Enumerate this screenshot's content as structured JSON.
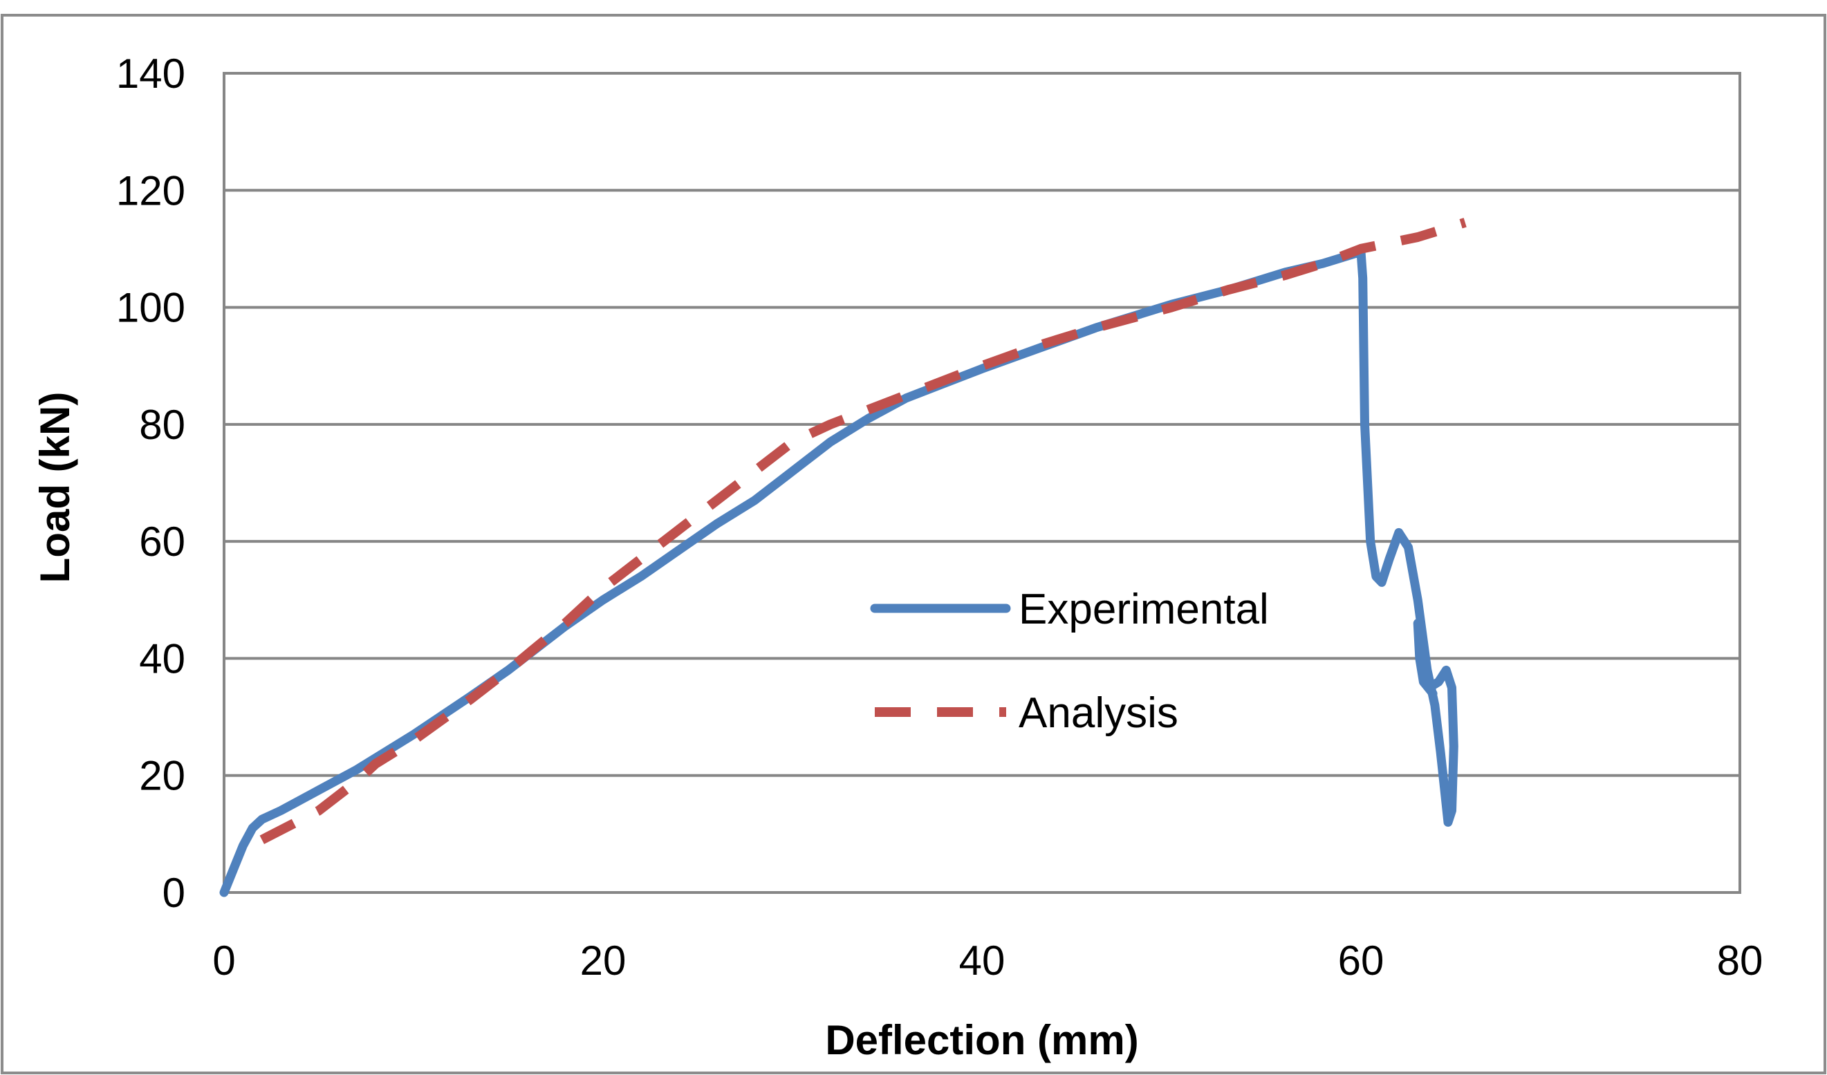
{
  "chart_data": {
    "type": "line",
    "title": "",
    "xlabel": "Deflection (mm)",
    "ylabel": "Load (kN)",
    "xlim": [
      0,
      80
    ],
    "ylim": [
      0,
      140
    ],
    "xticks": [
      0,
      20,
      40,
      60,
      80
    ],
    "yticks": [
      0,
      20,
      40,
      60,
      80,
      100,
      120,
      140
    ],
    "grid": "horizontal",
    "legend_position": "center-right",
    "series": [
      {
        "name": "Experimental",
        "color": "#4F81BD",
        "style": "solid",
        "points": [
          [
            0,
            0
          ],
          [
            0.5,
            4
          ],
          [
            1,
            8
          ],
          [
            1.5,
            11
          ],
          [
            2,
            12.5
          ],
          [
            3,
            14
          ],
          [
            5,
            17.5
          ],
          [
            7,
            21
          ],
          [
            10,
            27
          ],
          [
            13,
            33.5
          ],
          [
            15,
            38
          ],
          [
            18,
            45.5
          ],
          [
            20,
            50
          ],
          [
            22,
            54
          ],
          [
            24,
            58.5
          ],
          [
            26,
            63
          ],
          [
            28,
            67
          ],
          [
            30,
            72
          ],
          [
            32,
            77
          ],
          [
            34,
            81
          ],
          [
            36,
            84.5
          ],
          [
            38,
            87
          ],
          [
            40,
            89.5
          ],
          [
            43,
            93
          ],
          [
            46,
            96.5
          ],
          [
            50,
            100.5
          ],
          [
            53,
            103
          ],
          [
            56,
            106
          ],
          [
            58,
            107.5
          ],
          [
            60,
            109.5
          ],
          [
            60.1,
            105
          ],
          [
            60.2,
            80
          ],
          [
            60.5,
            60
          ],
          [
            60.8,
            54
          ],
          [
            61.1,
            53
          ],
          [
            61.5,
            57
          ],
          [
            62,
            61.5
          ],
          [
            62.5,
            59
          ],
          [
            63,
            50
          ],
          [
            63.5,
            38
          ],
          [
            63.9,
            32
          ],
          [
            64.2,
            24
          ],
          [
            64.4,
            18
          ],
          [
            64.6,
            12
          ],
          [
            64.8,
            14
          ],
          [
            64.9,
            25
          ],
          [
            64.8,
            35
          ],
          [
            64.5,
            38
          ],
          [
            64.1,
            36
          ],
          [
            63.6,
            35
          ],
          [
            63.2,
            42
          ],
          [
            63.0,
            46
          ],
          [
            63.1,
            40
          ],
          [
            63.3,
            36
          ],
          [
            63.8,
            34
          ]
        ]
      },
      {
        "name": "Analysis",
        "color": "#C0504D",
        "style": "dashed",
        "points": [
          [
            2,
            9
          ],
          [
            5,
            14
          ],
          [
            7,
            19
          ],
          [
            8,
            22
          ],
          [
            10,
            26
          ],
          [
            13,
            33
          ],
          [
            15,
            38
          ],
          [
            18,
            46
          ],
          [
            20,
            52
          ],
          [
            22,
            57
          ],
          [
            24,
            62
          ],
          [
            26,
            67
          ],
          [
            28,
            72
          ],
          [
            30,
            77
          ],
          [
            32,
            80
          ],
          [
            34,
            82.5
          ],
          [
            36,
            85
          ],
          [
            38,
            87.5
          ],
          [
            40,
            90
          ],
          [
            43,
            93.5
          ],
          [
            46,
            96.5
          ],
          [
            50,
            100
          ],
          [
            53,
            103
          ],
          [
            56,
            105.5
          ],
          [
            58,
            107.5
          ],
          [
            60,
            110
          ],
          [
            63,
            112
          ],
          [
            65.5,
            114.5
          ]
        ]
      }
    ]
  }
}
